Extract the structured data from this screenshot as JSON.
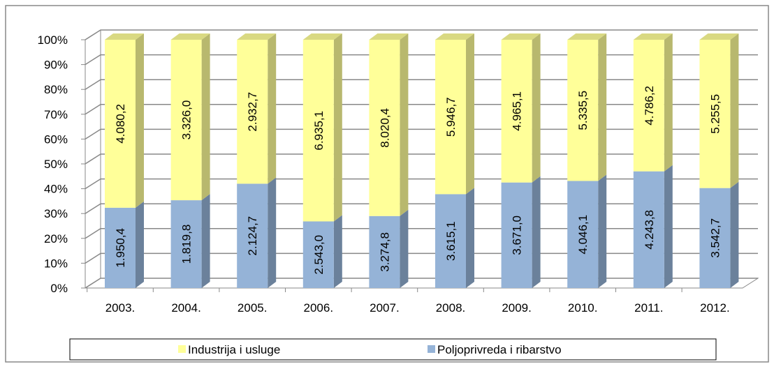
{
  "chart_data": {
    "type": "bar",
    "stacking": "percent",
    "categories": [
      "2003.",
      "2004.",
      "2005.",
      "2006.",
      "2007.",
      "2008.",
      "2009.",
      "2010.",
      "2011.",
      "2012."
    ],
    "series": [
      {
        "name": "Poljoprivreda i ribarstvo",
        "color": "#95b3d7",
        "values": [
          1950.4,
          1819.8,
          2124.7,
          2543.0,
          3274.8,
          3615.1,
          3671.0,
          4046.1,
          4243.8,
          3542.7
        ],
        "value_labels": [
          "1.950,4",
          "1.819,8",
          "2.124,7",
          "2.543,0",
          "3.274,8",
          "3.615,1",
          "3.671,0",
          "4.046,1",
          "4.243,8",
          "3.542,7"
        ]
      },
      {
        "name": "Industrija i usluge",
        "color": "#ffff99",
        "values": [
          4080.2,
          3326.0,
          2932.7,
          6935.1,
          8020.4,
          5946.7,
          4965.1,
          5335.5,
          4786.2,
          5255.5
        ],
        "value_labels": [
          "4.080,2",
          "3.326,0",
          "2.932,7",
          "6.935,1",
          "8.020,4",
          "5.946,7",
          "4.965,1",
          "5.335,5",
          "4.786,2",
          "5.255,5"
        ]
      }
    ],
    "ylim": [
      0,
      100
    ],
    "yticks": [
      {
        "value": 0,
        "label": "0%"
      },
      {
        "value": 10,
        "label": "10%"
      },
      {
        "value": 20,
        "label": "20%"
      },
      {
        "value": 30,
        "label": "30%"
      },
      {
        "value": 40,
        "label": "40%"
      },
      {
        "value": 50,
        "label": "50%"
      },
      {
        "value": 60,
        "label": "60%"
      },
      {
        "value": 70,
        "label": "70%"
      },
      {
        "value": 80,
        "label": "80%"
      },
      {
        "value": 90,
        "label": "90%"
      },
      {
        "value": 100,
        "label": "100%"
      }
    ],
    "grid": true,
    "legend": "bottom"
  }
}
